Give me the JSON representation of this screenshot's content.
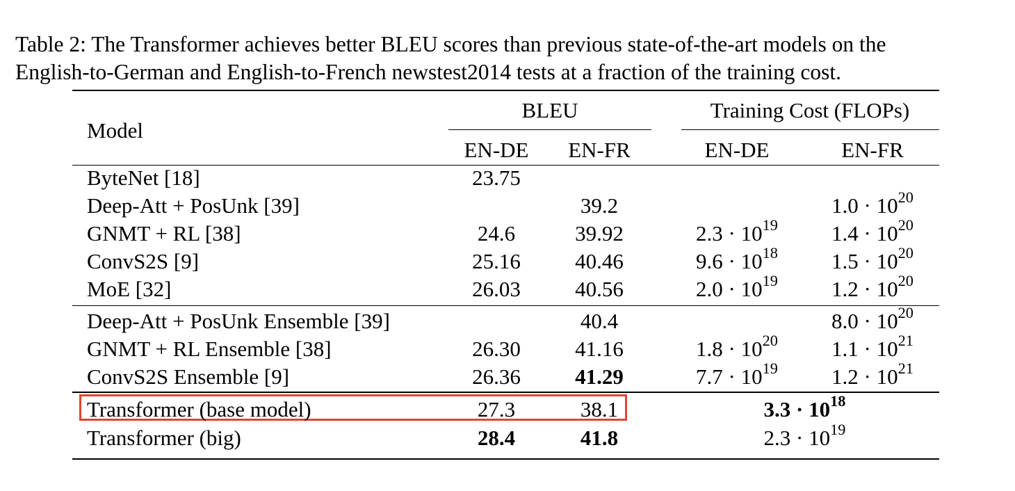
{
  "caption": {
    "line1": "Table 2: The Transformer achieves better BLEU scores than previous state-of-the-art models on the",
    "line2": "English-to-German and English-to-French newstest2014 tests at a fraction of the training cost."
  },
  "header": {
    "model": "Model",
    "bleu": "BLEU",
    "training_cost": "Training Cost (FLOPs)",
    "sub": [
      "EN-DE",
      "EN-FR",
      "EN-DE",
      "EN-FR"
    ]
  },
  "rows": [
    {
      "model": "ByteNet [18]",
      "bleu_en_de": "23.75",
      "bleu_en_fr": "",
      "cost_en_de": "",
      "cost_en_fr": ""
    },
    {
      "model": "Deep-Att + PosUnk [39]",
      "bleu_en_de": "",
      "bleu_en_fr": "39.2",
      "cost_en_de": "",
      "cost_en_fr": "1.0 · 10^20"
    },
    {
      "model": "GNMT + RL [38]",
      "bleu_en_de": "24.6",
      "bleu_en_fr": "39.92",
      "cost_en_de": "2.3 · 10^19",
      "cost_en_fr": "1.4 · 10^20"
    },
    {
      "model": "ConvS2S [9]",
      "bleu_en_de": "25.16",
      "bleu_en_fr": "40.46",
      "cost_en_de": "9.6 · 10^18",
      "cost_en_fr": "1.5 · 10^20"
    },
    {
      "model": "MoE [32]",
      "bleu_en_de": "26.03",
      "bleu_en_fr": "40.56",
      "cost_en_de": "2.0 · 10^19",
      "cost_en_fr": "1.2 · 10^20"
    },
    {
      "model": "Deep-Att + PosUnk Ensemble [39]",
      "bleu_en_de": "",
      "bleu_en_fr": "40.4",
      "cost_en_de": "",
      "cost_en_fr": "8.0 · 10^20"
    },
    {
      "model": "GNMT + RL Ensemble [38]",
      "bleu_en_de": "26.30",
      "bleu_en_fr": "41.16",
      "cost_en_de": "1.8 · 10^20",
      "cost_en_fr": "1.1 · 10^21"
    },
    {
      "model": "ConvS2S Ensemble [9]",
      "bleu_en_de": "26.36",
      "bleu_en_fr": "41.29",
      "cost_en_de": "7.7 · 10^19",
      "cost_en_fr": "1.2 · 10^21",
      "bold": [
        "bleu_en_fr"
      ]
    },
    {
      "model": "Transformer (base model)",
      "bleu_en_de": "27.3",
      "bleu_en_fr": "38.1",
      "cost_combined": "3.3 · 10^18",
      "bold": [
        "cost_combined"
      ],
      "highlight": true
    },
    {
      "model": "Transformer (big)",
      "bleu_en_de": "28.4",
      "bleu_en_fr": "41.8",
      "cost_combined": "2.3 · 10^19",
      "bold": [
        "bleu_en_de",
        "bleu_en_fr"
      ]
    }
  ],
  "highlight_color": "#e5432e"
}
